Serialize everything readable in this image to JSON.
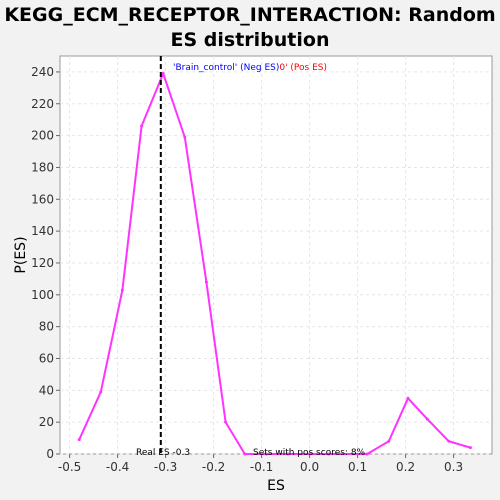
{
  "chart_data": {
    "type": "line",
    "title_line1": "KEGG_ECM_RECEPTOR_INTERACTION: Random",
    "title_line2": "ES distribution",
    "xlabel": "ES",
    "ylabel": "P(ES)",
    "xlim": [
      -0.52,
      0.38
    ],
    "ylim": [
      0,
      250
    ],
    "x_ticks": [
      -0.5,
      -0.4,
      -0.3,
      -0.2,
      -0.1,
      0.0,
      0.1,
      0.2,
      0.3
    ],
    "x_tick_labels": [
      "-0.5",
      "-0.4",
      "-0.3",
      "-0.2",
      "-0.1",
      "0.0",
      "0.1",
      "0.2",
      "0.3"
    ],
    "y_ticks": [
      0,
      20,
      40,
      60,
      80,
      100,
      120,
      140,
      160,
      180,
      200,
      220,
      240
    ],
    "y_tick_labels": [
      "0",
      "20",
      "40",
      "60",
      "80",
      "100",
      "120",
      "140",
      "160",
      "180",
      "200",
      "220",
      "240"
    ],
    "grid": true,
    "series": [
      {
        "color": "#ff33ff",
        "x": [
          -0.48,
          -0.435,
          -0.39,
          -0.35,
          -0.305,
          -0.26,
          -0.215,
          -0.175,
          -0.135,
          -0.09,
          -0.045,
          0.0,
          0.04,
          0.12,
          0.165,
          0.205,
          0.245,
          0.29,
          0.335
        ],
        "y": [
          9,
          39,
          103,
          206,
          239,
          199,
          108,
          20,
          0,
          0,
          0,
          0,
          0,
          0,
          8,
          35,
          22,
          8,
          4
        ]
      }
    ],
    "real_es": -0.31,
    "legend": {
      "neg_text": "'Brain_control' (Neg ES)",
      "neg_color": "#0000ff",
      "pos_text": "0' (Pos ES)",
      "pos_color": "#ff0000",
      "placement": "top-center"
    },
    "annotations": {
      "real_es_label": "Real ES -0.3",
      "pos_scores_label": "Sets with pos scores: 8%"
    }
  }
}
